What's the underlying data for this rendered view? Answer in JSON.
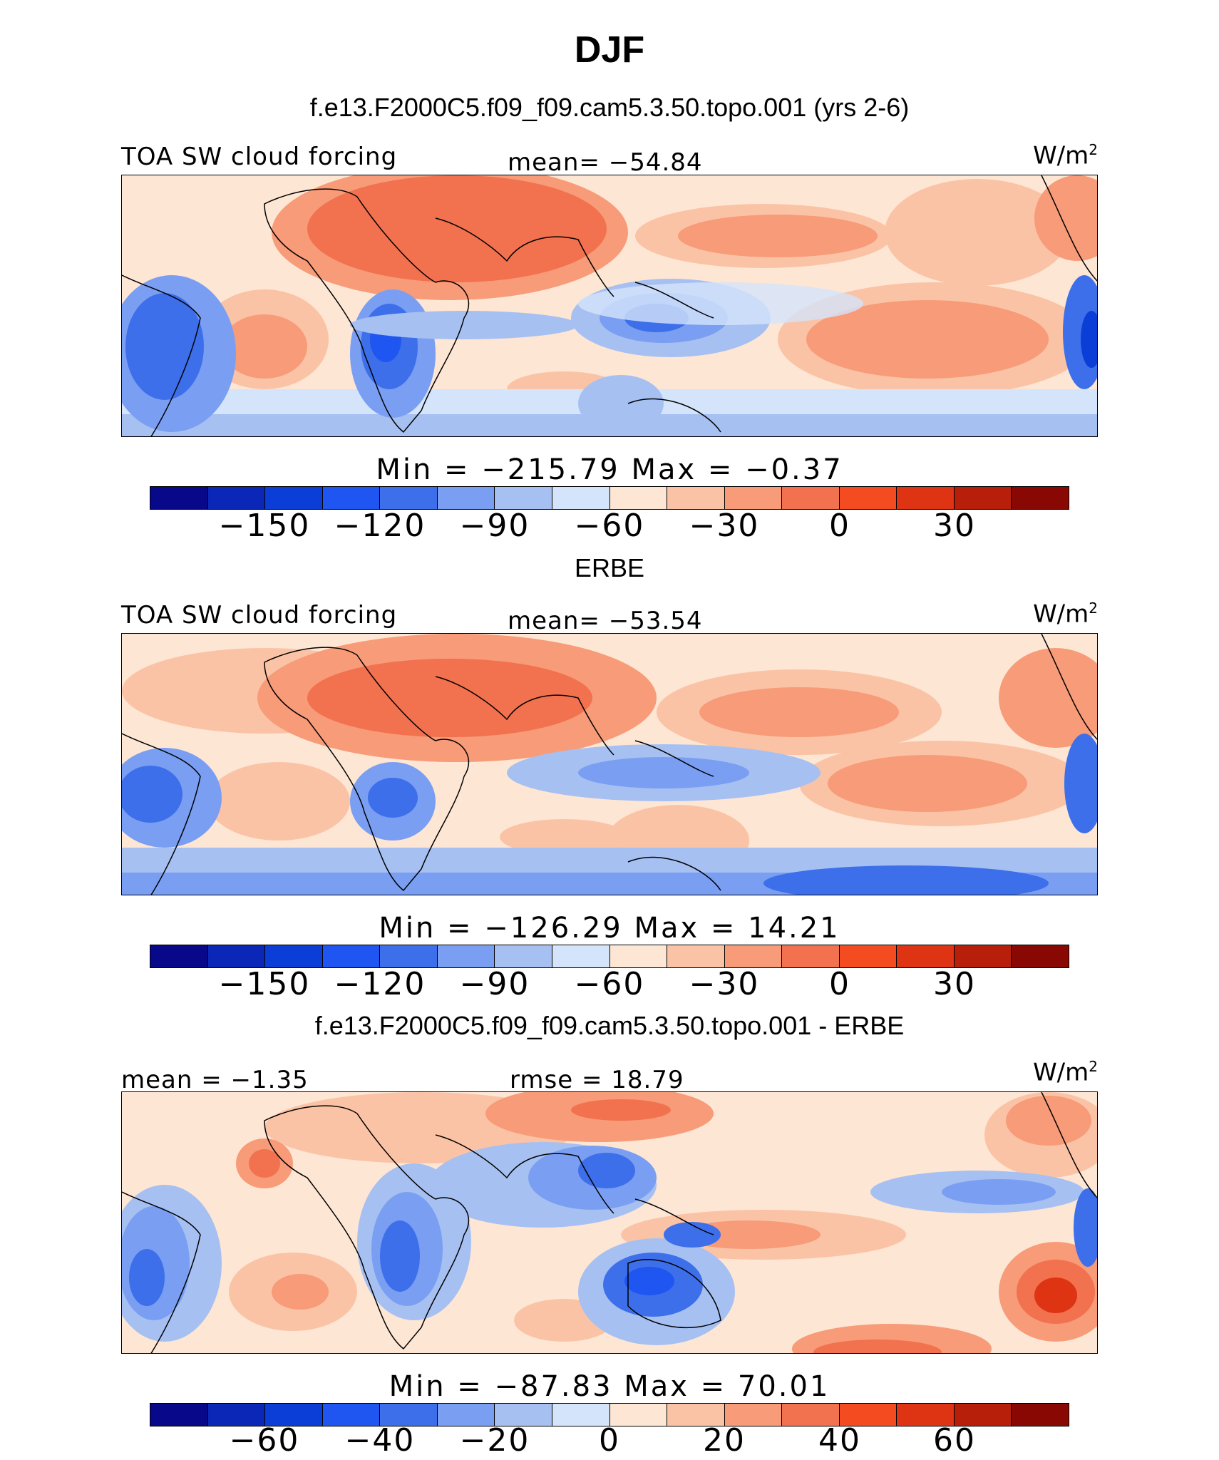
{
  "figure": {
    "title": "DJF",
    "units_base": "W/m",
    "units_exp": "2"
  },
  "palette": [
    "#08088a",
    "#0a27b8",
    "#0a3ed6",
    "#1f55f0",
    "#3d6fea",
    "#7a9ef2",
    "#a6c0f2",
    "#d4e4fa",
    "#fde6d4",
    "#fbc3a6",
    "#f79b78",
    "#f2714e",
    "#f44b21",
    "#de3413",
    "#b81f0a",
    "#8a0804"
  ],
  "chart_data": [
    {
      "type": "heatmap",
      "title": "f.e13.F2000C5.f09_f09.cam5.3.50.topo.001 (yrs 2-6)",
      "variable": "TOA SW cloud forcing",
      "stat_center": "mean= −54.84",
      "units": "W/m2",
      "min_max": "Min  =  −215.79  Max  =   −0.37",
      "min": -215.79,
      "max": -0.37,
      "mean": -54.84,
      "colorbar_ticks": [
        "−150",
        "−120",
        "−90",
        "−60",
        "−30",
        "0",
        "30"
      ]
    },
    {
      "type": "heatmap",
      "title": "ERBE",
      "variable": "TOA SW cloud forcing",
      "stat_center": "mean= −53.54",
      "units": "W/m2",
      "min_max": "Min  =  −126.29  Max  =   14.21",
      "min": -126.29,
      "max": 14.21,
      "mean": -53.54,
      "colorbar_ticks": [
        "−150",
        "−120",
        "−90",
        "−60",
        "−30",
        "0",
        "30"
      ]
    },
    {
      "type": "heatmap",
      "title": "f.e13.F2000C5.f09_f09.cam5.3.50.topo.001 - ERBE",
      "stat_left": "mean  =   −1.35",
      "stat_center": "rmse  =   18.79",
      "units": "W/m2",
      "min_max": "Min  =  −87.83  Max  =   70.01",
      "min": -87.83,
      "max": 70.01,
      "mean": -1.35,
      "rmse": 18.79,
      "colorbar_ticks": [
        "−60",
        "−40",
        "−20",
        "0",
        "20",
        "40",
        "60"
      ]
    }
  ]
}
